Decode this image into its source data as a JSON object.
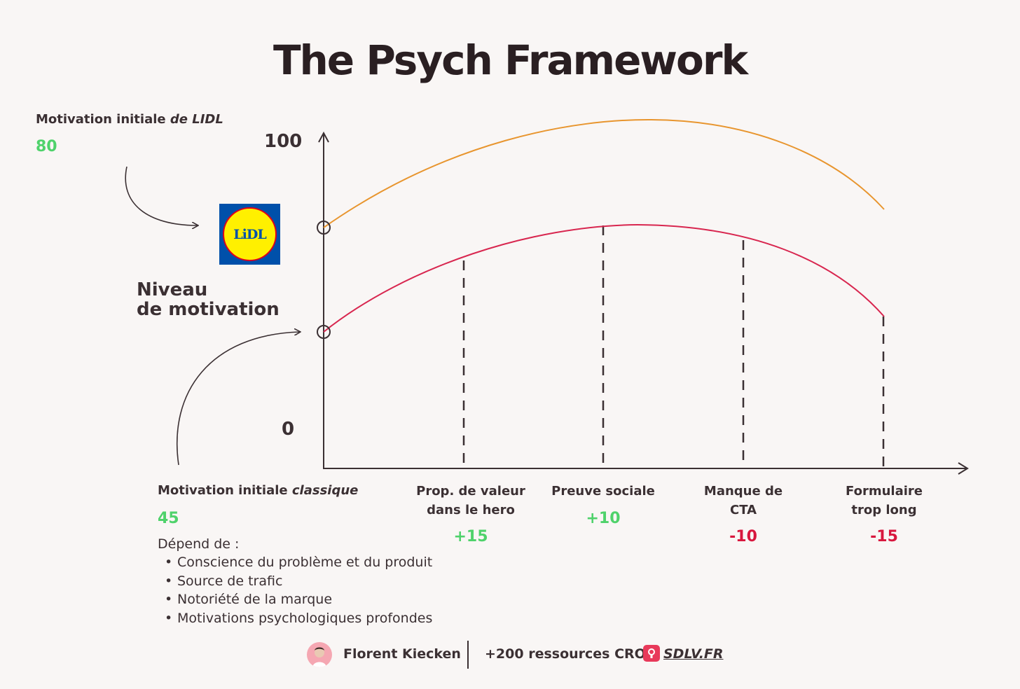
{
  "title": "The Psych Framework",
  "lidl_motivation": {
    "label_prefix": "Motivation initiale ",
    "label_em": "de LIDL",
    "value": "80"
  },
  "lidl_logo_text": "LiDL",
  "y_axis": {
    "label_line1": "Niveau",
    "label_line2": "de motivation",
    "top_tick": "100",
    "bottom_tick": "0"
  },
  "classic_motivation": {
    "label_prefix": "Motivation initiale ",
    "label_em": "classique",
    "value": "45",
    "depends_label": "Dépend de :",
    "factors": [
      "Conscience du problème et du produit",
      "Source de trafic",
      "Notoriété de la marque",
      "Motivations psychologiques profondes"
    ]
  },
  "steps": [
    {
      "line1": "Prop. de valeur",
      "line2": "dans le hero",
      "delta": "+15"
    },
    {
      "line1": "Preuve sociale",
      "line2": "",
      "delta": "+10"
    },
    {
      "line1": "Manque de",
      "line2": "CTA",
      "delta": "-10"
    },
    {
      "line1": "Formulaire",
      "line2": "trop long",
      "delta": "-15"
    }
  ],
  "footer": {
    "author": "Florent Kiecken",
    "resources": "+200 ressources CRO :",
    "site": "SDLV.FR"
  },
  "colors": {
    "lidl_curve": "#e8952e",
    "classic_curve": "#d8264f",
    "positive": "#4fd26b",
    "negative": "#d8173e"
  }
}
